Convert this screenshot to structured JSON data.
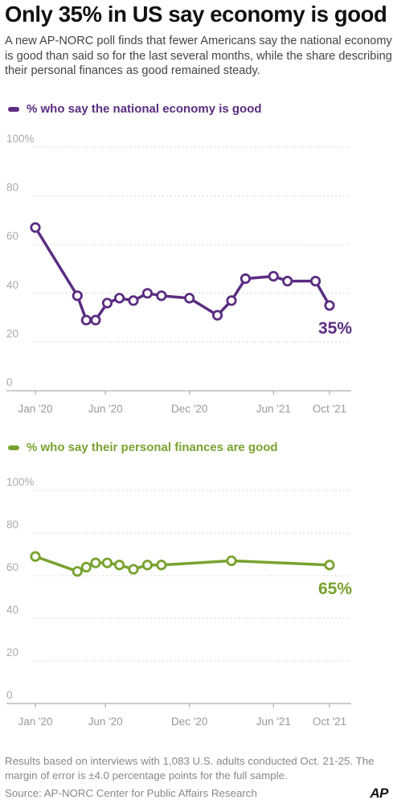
{
  "title": "Only 35% in US say economy is good",
  "subtitle": "A new AP-NORC poll finds that fewer Americans say the national economy is good than said so for the last several months, while the share describing their personal finances as good remained steady.",
  "footnote": "Results based on interviews with 1,083 U.S. adults conducted Oct. 21-25. The margin of error is ±4.0 percentage points for the full sample.",
  "source": "Source: AP-NORC Center for Public Affairs Research",
  "logo_text": "AP",
  "chart_data": [
    {
      "type": "line",
      "legend": "% who say the national economy is good",
      "color": "#5b2d82",
      "x_tick_labels": [
        "Jan '20",
        "Jun '20",
        "Dec '20",
        "Jun '21",
        "Oct '21"
      ],
      "x_tick_dates": [
        "2020-01",
        "2020-06",
        "2020-12",
        "2021-06",
        "2021-10"
      ],
      "y_ticks": [
        0,
        20,
        40,
        60,
        80,
        100
      ],
      "y_tick_labels": [
        "0",
        "20",
        "40",
        "60",
        "80",
        "100%"
      ],
      "ylim": [
        0,
        100
      ],
      "grid": true,
      "x": [
        "2020-01",
        "2020-04",
        "2020-04-20",
        "2020-05-10",
        "2020-06-05",
        "2020-07",
        "2020-08",
        "2020-09",
        "2020-10",
        "2020-12",
        "2021-02",
        "2021-03",
        "2021-04",
        "2021-06",
        "2021-07",
        "2021-09",
        "2021-10"
      ],
      "values": [
        67,
        39,
        29,
        29,
        36,
        38,
        37,
        40,
        39,
        38,
        31,
        37,
        46,
        47,
        45,
        45,
        35
      ],
      "end_label": "35%"
    },
    {
      "type": "line",
      "legend": "% who say their personal finances are good",
      "color": "#78a22f",
      "x_tick_labels": [
        "Jan '20",
        "Jun '20",
        "Dec '20",
        "Jun '21",
        "Oct '21"
      ],
      "x_tick_dates": [
        "2020-01",
        "2020-06",
        "2020-12",
        "2021-06",
        "2021-10"
      ],
      "y_ticks": [
        0,
        20,
        40,
        60,
        80,
        100
      ],
      "y_tick_labels": [
        "0",
        "20",
        "40",
        "60",
        "80",
        "100%"
      ],
      "ylim": [
        0,
        100
      ],
      "grid": true,
      "x": [
        "2020-01",
        "2020-04",
        "2020-04-20",
        "2020-05-10",
        "2020-06-05",
        "2020-07",
        "2020-08",
        "2020-09",
        "2020-10",
        "2021-03",
        "2021-10"
      ],
      "values": [
        69,
        62,
        64,
        66,
        66,
        65,
        63,
        65,
        65,
        67,
        65
      ],
      "end_label": "65%"
    }
  ]
}
